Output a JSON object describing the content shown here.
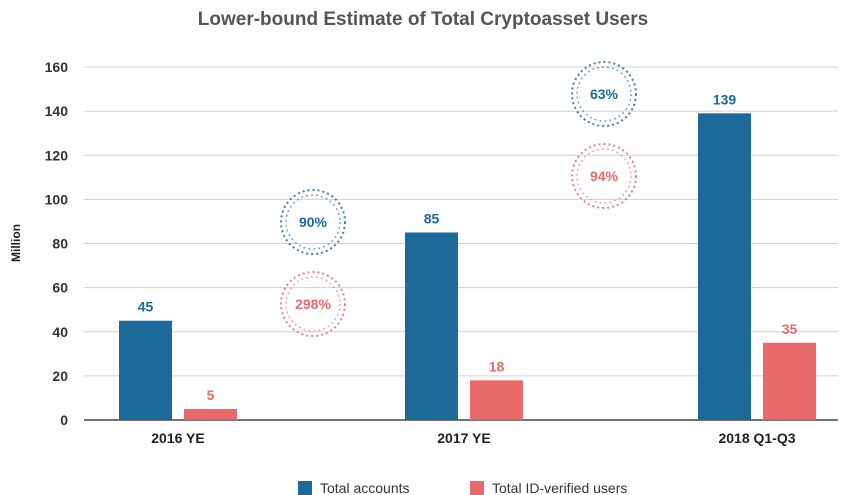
{
  "chart_data": {
    "type": "bar",
    "title": "Lower-bound Estimate of Total Cryptoasset Users",
    "ylabel": "Million",
    "xlabel": "",
    "ylim": [
      0,
      160
    ],
    "yticks": [
      0,
      20,
      40,
      60,
      80,
      100,
      120,
      140,
      160
    ],
    "categories": [
      "2016 YE",
      "2017 YE",
      "2018 Q1-Q3"
    ],
    "series": [
      {
        "name": "Total accounts",
        "values": [
          45,
          85,
          139
        ],
        "color": "#1c6a99"
      },
      {
        "name": "Total ID-verified users",
        "values": [
          5,
          18,
          35
        ],
        "color": "#e86a6a"
      }
    ],
    "growth_annotations": [
      {
        "between": [
          "2016 YE",
          "2017 YE"
        ],
        "series": "Total accounts",
        "label": "90%"
      },
      {
        "between": [
          "2016 YE",
          "2017 YE"
        ],
        "series": "Total ID-verified users",
        "label": "298%"
      },
      {
        "between": [
          "2017 YE",
          "2018 Q1-Q3"
        ],
        "series": "Total accounts",
        "label": "63%"
      },
      {
        "between": [
          "2017 YE",
          "2018 Q1-Q3"
        ],
        "series": "Total ID-verified users",
        "label": "94%"
      }
    ],
    "grid": true,
    "legend_position": "bottom-center"
  }
}
